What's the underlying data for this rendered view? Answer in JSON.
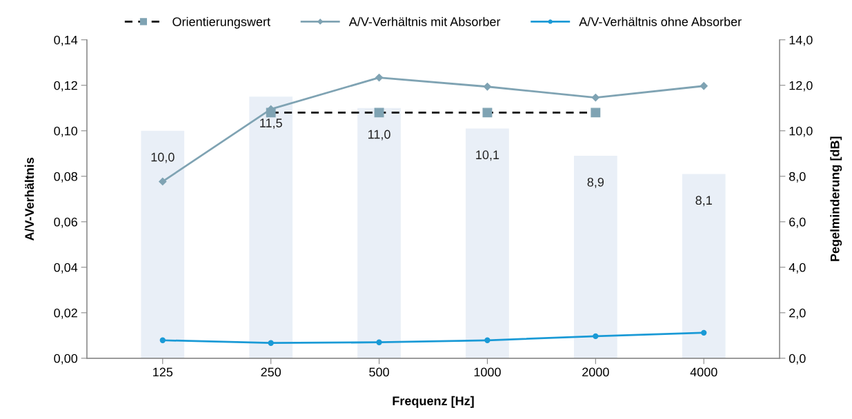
{
  "chart_data": {
    "type": "line",
    "xlabel": "Frequenz [Hz]",
    "ylabel": "A/V-Verhältnis",
    "y2label": "Pegelminderung [dB]",
    "categories": [
      "125",
      "250",
      "500",
      "1000",
      "2000",
      "4000"
    ],
    "series": [
      {
        "type": "bar",
        "axis": "y2",
        "color": "#e9eff7",
        "values": [
          10.0,
          11.5,
          11.0,
          10.1,
          8.9,
          8.1
        ],
        "value_labels": [
          "10,0",
          "11,5",
          "11,0",
          "10,1",
          "8,9",
          "8,1"
        ]
      },
      {
        "name": "Orientierungswert",
        "color": "#000000",
        "colors": [
          null,
          "#7fa3b3",
          "#7fa3b3",
          "#7fa3b3",
          "#7fa3b3",
          null
        ],
        "marker": "square",
        "line_style": "dashed",
        "values": [
          null,
          0.108,
          0.108,
          0.108,
          0.108,
          null
        ]
      },
      {
        "name": "A/V-Verhältnis mit Absorber",
        "color": "#7fa3b3",
        "marker": "diamond",
        "line_style": "solid",
        "values": [
          0.0777,
          0.1095,
          0.1234,
          0.1194,
          0.1146,
          0.1197
        ]
      },
      {
        "name": "A/V-Verhältnis ohne Absorber",
        "color": "#1a9ad6",
        "marker": "circle",
        "line_style": "solid",
        "values": [
          0.0079,
          0.0067,
          0.007,
          0.0079,
          0.0097,
          0.0112
        ]
      }
    ],
    "ylim": [
      0,
      0.14
    ],
    "yticks": [
      {
        "value": 0,
        "label": "0,00"
      },
      {
        "value": 0.02,
        "label": "0,02"
      },
      {
        "value": 0.04,
        "label": "0,04"
      },
      {
        "value": 0.06,
        "label": "0,06"
      },
      {
        "value": 0.08,
        "label": "0,08"
      },
      {
        "value": 0.1,
        "label": "0,10"
      },
      {
        "value": 0.12,
        "label": "0,12"
      },
      {
        "value": 0.14,
        "label": "0,14"
      }
    ],
    "y2lim": [
      0,
      14
    ],
    "y2ticks": [
      {
        "value": 0,
        "label": "0,0"
      },
      {
        "value": 2,
        "label": "2,0"
      },
      {
        "value": 4,
        "label": "4,0"
      },
      {
        "value": 6,
        "label": "6,0"
      },
      {
        "value": 8,
        "label": "8,0"
      },
      {
        "value": 10,
        "label": "10,0"
      },
      {
        "value": 12,
        "label": "12,0"
      },
      {
        "value": 14,
        "label": "14,0"
      }
    ],
    "grid": false,
    "legend": "top"
  }
}
